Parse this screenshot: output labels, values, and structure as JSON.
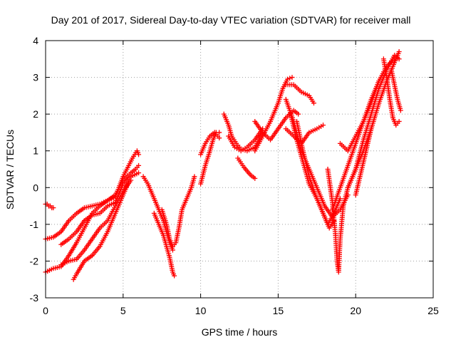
{
  "chart_data": {
    "type": "scatter",
    "title": "Day 201 of 2017, Sidereal Day-to-day VTEC variation (SDTVAR) for receiver mall",
    "xlabel": "GPS time / hours",
    "ylabel": "SDTVAR / TECUs",
    "xlim": [
      0,
      25
    ],
    "ylim": [
      -3,
      4
    ],
    "xticks": [
      "0",
      "5",
      "10",
      "15",
      "20",
      "25"
    ],
    "yticks": [
      "-3",
      "-2",
      "-1",
      "0",
      "1",
      "2",
      "3",
      "4"
    ],
    "grid": true,
    "marker": "+",
    "color": "#ff0000",
    "series": [
      {
        "x": [
          0.0,
          0.1,
          0.2,
          0.3,
          0.4,
          0.5
        ],
        "y": [
          -0.45,
          -0.45,
          -0.5,
          -0.5,
          -0.55,
          -0.55
        ]
      },
      {
        "x": [
          0.0,
          0.5,
          1.0,
          1.5,
          2.0,
          2.5,
          3.0,
          3.5,
          4.0,
          4.5,
          5.0,
          5.3,
          5.6,
          5.9,
          6.0
        ],
        "y": [
          -1.4,
          -1.35,
          -1.2,
          -0.9,
          -0.7,
          -0.55,
          -0.5,
          -0.45,
          -0.35,
          -0.25,
          0.3,
          0.55,
          0.8,
          1.0,
          0.9
        ]
      },
      {
        "x": [
          0.0,
          0.5,
          1.0,
          1.5,
          2.0,
          2.5,
          3.0,
          3.5,
          4.0,
          4.5,
          5.0,
          5.5,
          5.8,
          6.0
        ],
        "y": [
          -2.3,
          -2.2,
          -2.15,
          -1.85,
          -1.5,
          -1.1,
          -0.7,
          -0.5,
          -0.35,
          -0.2,
          0.2,
          0.4,
          0.5,
          0.6
        ]
      },
      {
        "x": [
          1.0,
          1.5,
          2.0,
          2.5,
          3.0,
          3.5,
          4.0,
          4.5,
          5.0,
          5.5,
          6.0
        ],
        "y": [
          -1.55,
          -1.4,
          -1.2,
          -0.9,
          -0.75,
          -0.7,
          -0.5,
          -0.4,
          0.1,
          0.3,
          0.4
        ]
      },
      {
        "x": [
          1.0,
          1.5,
          2.0,
          2.5,
          3.0,
          3.5,
          4.0,
          4.5,
          5.0,
          5.5
        ],
        "y": [
          -2.1,
          -2.0,
          -1.95,
          -1.7,
          -1.4,
          -1.1,
          -0.9,
          -0.5,
          -0.1,
          0.2
        ]
      },
      {
        "x": [
          1.8,
          2.0,
          2.5,
          3.0,
          3.5,
          4.0,
          4.5,
          5.0,
          5.3
        ],
        "y": [
          -2.5,
          -2.35,
          -2.0,
          -1.85,
          -1.6,
          -1.2,
          -0.7,
          -0.2,
          0.1
        ]
      },
      {
        "x": [
          6.3,
          6.6,
          7.0,
          7.3,
          7.6,
          7.8,
          8.0,
          8.2
        ],
        "y": [
          0.3,
          0.1,
          -0.3,
          -0.6,
          -0.9,
          -1.2,
          -1.5,
          -1.7
        ]
      },
      {
        "x": [
          7.0,
          7.3,
          7.6,
          7.8,
          8.0,
          8.1,
          8.2,
          8.3
        ],
        "y": [
          -0.7,
          -1.0,
          -1.3,
          -1.6,
          -1.9,
          -2.1,
          -2.3,
          -2.4
        ]
      },
      {
        "x": [
          7.5,
          7.8,
          8.0,
          8.2,
          8.4,
          8.6,
          8.8,
          9.0,
          9.2,
          9.4,
          9.6
        ],
        "y": [
          -0.6,
          -1.0,
          -1.4,
          -1.6,
          -1.5,
          -1.1,
          -0.6,
          -0.4,
          -0.2,
          0.0,
          0.3
        ]
      },
      {
        "x": [
          10.0,
          10.3,
          10.6,
          10.8,
          11.0,
          11.2
        ],
        "y": [
          0.1,
          0.6,
          1.0,
          1.3,
          1.5,
          1.5
        ]
      },
      {
        "x": [
          10.0,
          10.3,
          10.6,
          10.9,
          11.2
        ],
        "y": [
          0.9,
          1.2,
          1.4,
          1.5,
          1.35
        ]
      },
      {
        "x": [
          11.5,
          11.8,
          12.0,
          12.3,
          12.6,
          13.0,
          13.5,
          14.0
        ],
        "y": [
          2.0,
          1.7,
          1.4,
          1.2,
          1.05,
          1.0,
          1.1,
          1.5
        ]
      },
      {
        "x": [
          11.8,
          12.2,
          12.6,
          13.0,
          13.5,
          14.0
        ],
        "y": [
          1.4,
          1.1,
          1.0,
          1.1,
          1.3,
          1.6
        ]
      },
      {
        "x": [
          12.4,
          12.8,
          13.2,
          13.5
        ],
        "y": [
          0.8,
          0.55,
          0.35,
          0.25
        ]
      },
      {
        "x": [
          13.5,
          14.0,
          14.5,
          15.0,
          15.5,
          16.0,
          16.3
        ],
        "y": [
          1.8,
          1.5,
          1.3,
          1.6,
          1.9,
          2.1,
          2.0
        ]
      },
      {
        "x": [
          13.5,
          14.0,
          14.5,
          15.0,
          15.3,
          15.6,
          15.9
        ],
        "y": [
          1.0,
          1.4,
          1.8,
          2.3,
          2.7,
          2.95,
          3.0
        ]
      },
      {
        "x": [
          15.5,
          16.0,
          16.5,
          17.0,
          17.3
        ],
        "y": [
          2.8,
          2.8,
          2.6,
          2.5,
          2.3
        ]
      },
      {
        "x": [
          15.5,
          16.0,
          16.5,
          17.0,
          17.5,
          17.9
        ],
        "y": [
          1.6,
          1.4,
          1.2,
          1.5,
          1.6,
          1.7
        ]
      },
      {
        "x": [
          15.5,
          16.0,
          16.5,
          17.0,
          17.5,
          18.0,
          18.5,
          19.0,
          19.5
        ],
        "y": [
          2.4,
          1.8,
          1.0,
          0.5,
          0.0,
          -0.5,
          -0.8,
          -0.6,
          -0.2
        ]
      },
      {
        "x": [
          15.8,
          16.2,
          16.6,
          17.0,
          17.5,
          18.0,
          18.3,
          18.6
        ],
        "y": [
          2.0,
          1.3,
          0.7,
          0.1,
          -0.3,
          -0.8,
          -1.1,
          -0.9
        ]
      },
      {
        "x": [
          16.2,
          16.6,
          17.0,
          17.4,
          17.8,
          18.2,
          18.6,
          19.0
        ],
        "y": [
          1.8,
          1.0,
          0.3,
          -0.2,
          -0.6,
          -1.0,
          -0.7,
          -0.3
        ]
      },
      {
        "x": [
          18.2,
          18.5,
          18.7,
          18.8,
          18.9,
          19.0,
          19.2,
          19.5,
          20.0,
          20.5,
          21.0
        ],
        "y": [
          0.5,
          -0.4,
          -1.3,
          -2.0,
          -2.3,
          -1.4,
          -0.5,
          0.0,
          0.5,
          1.0,
          1.6
        ]
      },
      {
        "x": [
          18.5,
          19.0,
          19.5,
          20.0,
          20.5,
          21.0,
          21.5
        ],
        "y": [
          -0.6,
          0.0,
          0.6,
          1.2,
          1.8,
          2.3,
          2.9
        ]
      },
      {
        "x": [
          19.0,
          19.5,
          20.0,
          20.5,
          21.0,
          21.5,
          22.0,
          22.5
        ],
        "y": [
          1.2,
          1.0,
          1.4,
          1.8,
          2.4,
          2.9,
          3.3,
          3.5
        ]
      },
      {
        "x": [
          19.5,
          20.0,
          20.5,
          21.0,
          21.5,
          22.0,
          22.5,
          22.8
        ],
        "y": [
          0.0,
          0.5,
          1.3,
          2.0,
          2.7,
          3.2,
          3.6,
          3.5
        ]
      },
      {
        "x": [
          20.0,
          20.5,
          21.0,
          21.5,
          22.0,
          22.4,
          22.8
        ],
        "y": [
          -0.2,
          0.7,
          1.6,
          2.3,
          2.9,
          3.3,
          3.7
        ]
      },
      {
        "x": [
          21.8,
          22.0,
          22.2,
          22.4,
          22.6,
          22.8
        ],
        "y": [
          3.5,
          3.0,
          2.4,
          1.9,
          1.7,
          1.8
        ]
      },
      {
        "x": [
          22.3,
          22.5,
          22.7,
          22.9
        ],
        "y": [
          3.2,
          2.8,
          2.4,
          2.1
        ]
      }
    ]
  }
}
